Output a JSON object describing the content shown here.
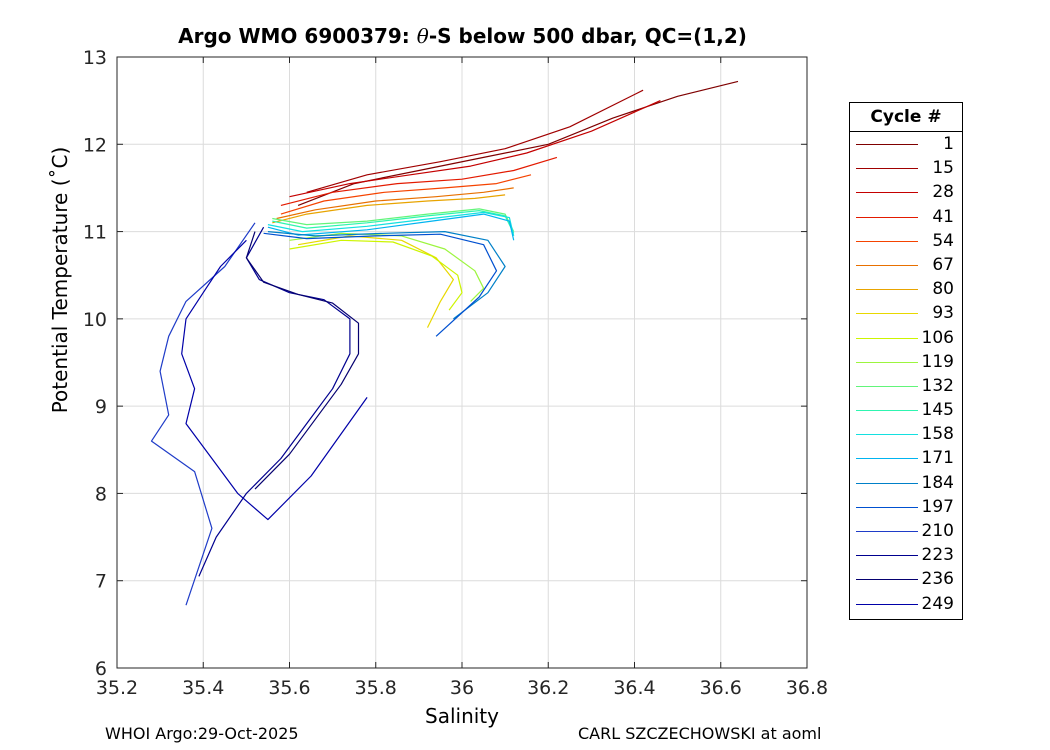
{
  "chart_data": {
    "type": "line",
    "title_prefix": "Argo WMO 6900379: ",
    "title_theta": "θ",
    "title_suffix": "-S below 500 dbar,  QC=(1,2)",
    "xlabel": "Salinity",
    "ylabel": "Potential Temperature (˚C)",
    "xlim": [
      35.2,
      36.8
    ],
    "ylim": [
      6,
      13
    ],
    "xticks": [
      "35.2",
      "35.4",
      "35.6",
      "35.8",
      "36",
      "36.2",
      "36.4",
      "36.6",
      "36.8"
    ],
    "yticks": [
      "6",
      "7",
      "8",
      "9",
      "10",
      "11",
      "12",
      "13"
    ],
    "grid": true,
    "legend_title": "Cycle #",
    "legend_placement": "right-outside",
    "legend": [
      {
        "label": "1",
        "color": "#7f0000"
      },
      {
        "label": "15",
        "color": "#a00000"
      },
      {
        "label": "28",
        "color": "#c40000"
      },
      {
        "label": "41",
        "color": "#e31a00"
      },
      {
        "label": "54",
        "color": "#f54300"
      },
      {
        "label": "67",
        "color": "#e87000"
      },
      {
        "label": "80",
        "color": "#e8a400"
      },
      {
        "label": "93",
        "color": "#e8d800"
      },
      {
        "label": "106",
        "color": "#cdf500"
      },
      {
        "label": "119",
        "color": "#9cf53e"
      },
      {
        "label": "132",
        "color": "#62f57a"
      },
      {
        "label": "145",
        "color": "#2ef5b0"
      },
      {
        "label": "158",
        "color": "#14e0e0"
      },
      {
        "label": "171",
        "color": "#00b4f0"
      },
      {
        "label": "184",
        "color": "#0080c8"
      },
      {
        "label": "197",
        "color": "#0050d0"
      },
      {
        "label": "210",
        "color": "#1f3cc8"
      },
      {
        "label": "223",
        "color": "#00008f"
      },
      {
        "label": "236",
        "color": "#050070"
      },
      {
        "label": "249",
        "color": "#0000a8"
      }
    ],
    "series": [
      {
        "name": "1",
        "color": "#7f0000",
        "x": [
          35.62,
          35.75,
          35.9,
          36.05,
          36.2,
          36.35,
          36.5,
          36.64
        ],
        "y": [
          11.3,
          11.55,
          11.7,
          11.85,
          12.0,
          12.3,
          12.55,
          12.72
        ]
      },
      {
        "name": "15",
        "color": "#a00000",
        "x": [
          35.64,
          35.78,
          35.95,
          36.1,
          36.25,
          36.42
        ],
        "y": [
          11.45,
          11.65,
          11.8,
          11.95,
          12.2,
          12.62
        ]
      },
      {
        "name": "28",
        "color": "#c40000",
        "x": [
          35.6,
          35.74,
          35.88,
          36.02,
          36.15,
          36.3,
          36.46
        ],
        "y": [
          11.4,
          11.55,
          11.65,
          11.75,
          11.9,
          12.15,
          12.5
        ]
      },
      {
        "name": "41",
        "color": "#e31a00",
        "x": [
          35.58,
          35.7,
          35.85,
          36.0,
          36.12,
          36.22
        ],
        "y": [
          11.3,
          11.45,
          11.55,
          11.6,
          11.7,
          11.85
        ]
      },
      {
        "name": "54",
        "color": "#f54300",
        "x": [
          35.58,
          35.68,
          35.82,
          35.96,
          36.08,
          36.16
        ],
        "y": [
          11.2,
          11.35,
          11.45,
          11.5,
          11.55,
          11.65
        ]
      },
      {
        "name": "67",
        "color": "#e87000",
        "x": [
          35.57,
          35.66,
          35.8,
          35.94,
          36.05,
          36.12
        ],
        "y": [
          11.15,
          11.25,
          11.35,
          11.4,
          11.45,
          11.5
        ]
      },
      {
        "name": "80",
        "color": "#e8a400",
        "x": [
          35.56,
          35.64,
          35.78,
          35.92,
          36.03,
          36.1
        ],
        "y": [
          11.1,
          11.2,
          11.3,
          11.35,
          11.38,
          11.42
        ]
      },
      {
        "name": "93",
        "color": "#e8d800",
        "x": [
          35.62,
          35.74,
          35.86,
          35.94,
          35.98,
          35.95,
          35.92
        ],
        "y": [
          10.85,
          10.95,
          10.9,
          10.7,
          10.45,
          10.2,
          9.9
        ]
      },
      {
        "name": "106",
        "color": "#cdf500",
        "x": [
          35.6,
          35.72,
          35.84,
          35.93,
          35.99,
          36.0,
          35.97
        ],
        "y": [
          10.8,
          10.9,
          10.88,
          10.72,
          10.5,
          10.3,
          10.1
        ]
      },
      {
        "name": "119",
        "color": "#9cf53e",
        "x": [
          35.6,
          35.72,
          35.86,
          35.96,
          36.03,
          36.05,
          36.02
        ],
        "y": [
          10.9,
          10.98,
          10.95,
          10.8,
          10.55,
          10.35,
          10.2
        ]
      },
      {
        "name": "132",
        "color": "#62f57a",
        "x": [
          35.56,
          35.64,
          35.78,
          35.92,
          36.04,
          36.1,
          36.12
        ],
        "y": [
          11.15,
          11.08,
          11.12,
          11.2,
          11.26,
          11.2,
          11.0
        ]
      },
      {
        "name": "145",
        "color": "#2ef5b0",
        "x": [
          35.56,
          35.64,
          35.78,
          35.92,
          36.04,
          36.1,
          36.12
        ],
        "y": [
          11.12,
          11.04,
          11.1,
          11.18,
          11.24,
          11.18,
          10.98
        ]
      },
      {
        "name": "158",
        "color": "#14e0e0",
        "x": [
          35.55,
          35.63,
          35.78,
          35.93,
          36.05,
          36.11,
          36.12
        ],
        "y": [
          11.08,
          11.0,
          11.06,
          11.15,
          11.22,
          11.16,
          10.95
        ]
      },
      {
        "name": "171",
        "color": "#00b4f0",
        "x": [
          35.55,
          35.62,
          35.78,
          35.93,
          36.05,
          36.11,
          36.12
        ],
        "y": [
          11.05,
          10.96,
          11.02,
          11.12,
          11.2,
          11.12,
          10.9
        ]
      },
      {
        "name": "184",
        "color": "#0080c8",
        "x": [
          35.55,
          35.66,
          35.82,
          35.96,
          36.06,
          36.1,
          36.06,
          35.98
        ],
        "y": [
          11.0,
          10.95,
          10.98,
          11.0,
          10.9,
          10.6,
          10.3,
          10.0
        ]
      },
      {
        "name": "197",
        "color": "#0050d0",
        "x": [
          35.54,
          35.64,
          35.8,
          35.95,
          36.05,
          36.08,
          36.04,
          35.94
        ],
        "y": [
          10.98,
          10.92,
          10.95,
          10.97,
          10.85,
          10.55,
          10.25,
          9.8
        ]
      },
      {
        "name": "210",
        "color": "#1f3cc8",
        "x": [
          35.52,
          35.45,
          35.36,
          35.32,
          35.3,
          35.32,
          35.28,
          35.38,
          35.42,
          35.36
        ],
        "y": [
          11.1,
          10.6,
          10.2,
          9.8,
          9.4,
          8.9,
          8.6,
          8.25,
          7.6,
          6.72
        ]
      },
      {
        "name": "223",
        "color": "#00008f",
        "x": [
          35.54,
          35.5,
          35.53,
          35.6,
          35.68,
          35.74,
          35.74,
          35.7,
          35.64,
          35.58,
          35.5,
          35.43,
          35.39
        ],
        "y": [
          11.05,
          10.7,
          10.45,
          10.3,
          10.22,
          10.0,
          9.6,
          9.2,
          8.8,
          8.4,
          8.0,
          7.5,
          7.05
        ]
      },
      {
        "name": "236",
        "color": "#050070",
        "x": [
          35.52,
          35.5,
          35.54,
          35.62,
          35.7,
          35.76,
          35.76,
          35.72,
          35.66,
          35.6,
          35.52
        ],
        "y": [
          11.0,
          10.7,
          10.42,
          10.28,
          10.18,
          9.95,
          9.6,
          9.25,
          8.85,
          8.45,
          8.05
        ]
      },
      {
        "name": "249",
        "color": "#0000a8",
        "x": [
          35.5,
          35.44,
          35.4,
          35.36,
          35.35,
          35.38,
          35.36,
          35.42,
          35.48,
          35.55,
          35.65,
          35.78
        ],
        "y": [
          10.9,
          10.6,
          10.3,
          10.0,
          9.6,
          9.2,
          8.8,
          8.4,
          8.0,
          7.7,
          8.2,
          9.1
        ]
      }
    ]
  },
  "footer": {
    "left": "WHOI Argo:29-Oct-2025",
    "right": "CARL SZCZECHOWSKI at aoml"
  }
}
